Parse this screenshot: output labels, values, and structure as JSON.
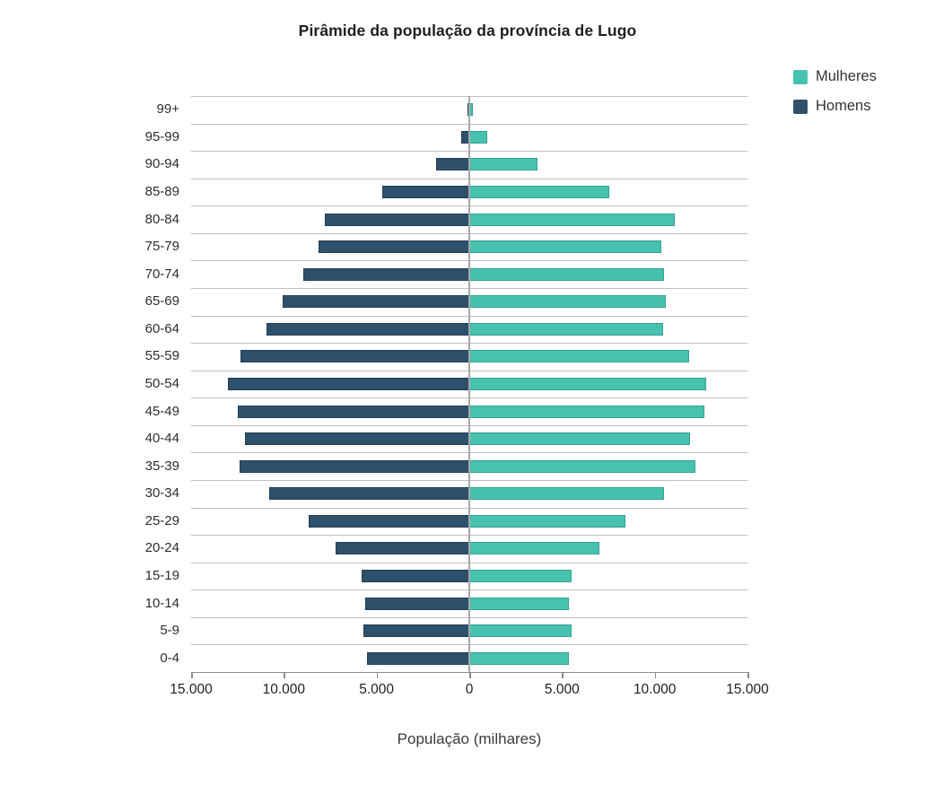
{
  "title": "Pirâmide da população da província de Lugo",
  "chart_data": {
    "type": "bar",
    "variant": "population-pyramid",
    "title": "Pirâmide da população da província de Lugo",
    "xlabel": "População (milhares)",
    "ylabel": "",
    "legend_position": "top-right",
    "grid": "horizontal",
    "x_max": 15000,
    "xlim": [
      -15000,
      15000
    ],
    "x_tick_labels": [
      "15.000",
      "10.000",
      "5.000",
      "0",
      "5.000",
      "10.000",
      "15.000"
    ],
    "categories": [
      "99+",
      "95-99",
      "90-94",
      "85-89",
      "80-84",
      "75-79",
      "70-74",
      "65-69",
      "60-64",
      "55-59",
      "50-54",
      "45-49",
      "40-44",
      "35-39",
      "30-34",
      "25-29",
      "20-24",
      "15-19",
      "10-14",
      "5-9",
      "0-4"
    ],
    "series": [
      {
        "name": "Mulheres",
        "side": "right",
        "color": "#46C2AF",
        "border_color": "#36a292",
        "values": [
          200,
          950,
          3700,
          7550,
          11100,
          10350,
          10500,
          10600,
          10450,
          11850,
          12750,
          12700,
          11900,
          12200,
          10500,
          8400,
          7000,
          5500,
          5350,
          5500,
          5350
        ]
      },
      {
        "name": "Homens",
        "side": "left",
        "color": "#2F506B",
        "border_color": "#223e55",
        "values": [
          100,
          450,
          1800,
          4700,
          7800,
          8150,
          8950,
          10050,
          10950,
          12350,
          13000,
          12500,
          12100,
          12400,
          10800,
          8650,
          7200,
          5800,
          5600,
          5700,
          5500
        ]
      }
    ]
  }
}
